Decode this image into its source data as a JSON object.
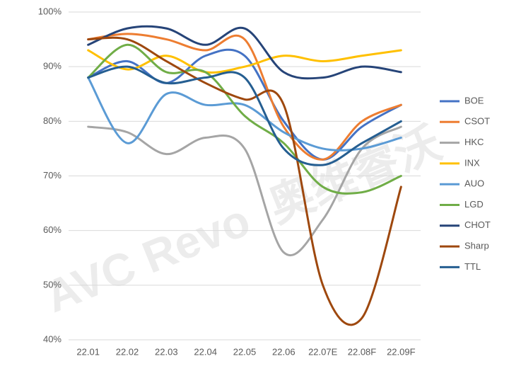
{
  "chart_data": {
    "type": "line",
    "watermark": [
      "AVC Revo",
      "奥维睿沃"
    ],
    "categories": [
      "22.01",
      "22.02",
      "22.03",
      "22.04",
      "22.05",
      "22.06",
      "22.07E",
      "22.08F",
      "22.09F"
    ],
    "series": [
      {
        "name": "BOE",
        "color": "#4472c4",
        "values": [
          88,
          91,
          87,
          92,
          92,
          80,
          73,
          79,
          83
        ]
      },
      {
        "name": "CSOT",
        "color": "#ed7d31",
        "values": [
          95,
          96,
          95,
          93,
          95,
          79,
          73,
          80,
          83
        ]
      },
      {
        "name": "HKC",
        "color": "#a5a5a5",
        "values": [
          79,
          78,
          74,
          77,
          75,
          56,
          62,
          75,
          79
        ]
      },
      {
        "name": "INX",
        "color": "#ffc000",
        "values": [
          93,
          89.5,
          92,
          89,
          90,
          92,
          91,
          92,
          93
        ]
      },
      {
        "name": "AUO",
        "color": "#5b9bd5",
        "values": [
          88,
          76,
          85,
          83,
          83,
          78,
          75,
          75,
          77
        ]
      },
      {
        "name": "LGD",
        "color": "#70ad47",
        "values": [
          88,
          94,
          89,
          89,
          81,
          76,
          68,
          67,
          70
        ]
      },
      {
        "name": "CHOT",
        "color": "#264478",
        "values": [
          94,
          97,
          97,
          94,
          97,
          89,
          88,
          90,
          89
        ]
      },
      {
        "name": "Sharp",
        "color": "#9e480e",
        "values": [
          95,
          95,
          91,
          87,
          84,
          83,
          50,
          44,
          68
        ]
      },
      {
        "name": "TTL",
        "color": "#255e91",
        "values": [
          88,
          90,
          87,
          88,
          88,
          75,
          72,
          76,
          80
        ]
      }
    ],
    "ylim": [
      40,
      100
    ],
    "yticks": [
      {
        "value": 40,
        "label": "40%"
      },
      {
        "value": 50,
        "label": "50%"
      },
      {
        "value": 60,
        "label": "60%"
      },
      {
        "value": 70,
        "label": "70%"
      },
      {
        "value": 80,
        "label": "80%"
      },
      {
        "value": 90,
        "label": "90%"
      },
      {
        "value": 100,
        "label": "100%"
      }
    ],
    "grid": true,
    "legend": "right"
  }
}
